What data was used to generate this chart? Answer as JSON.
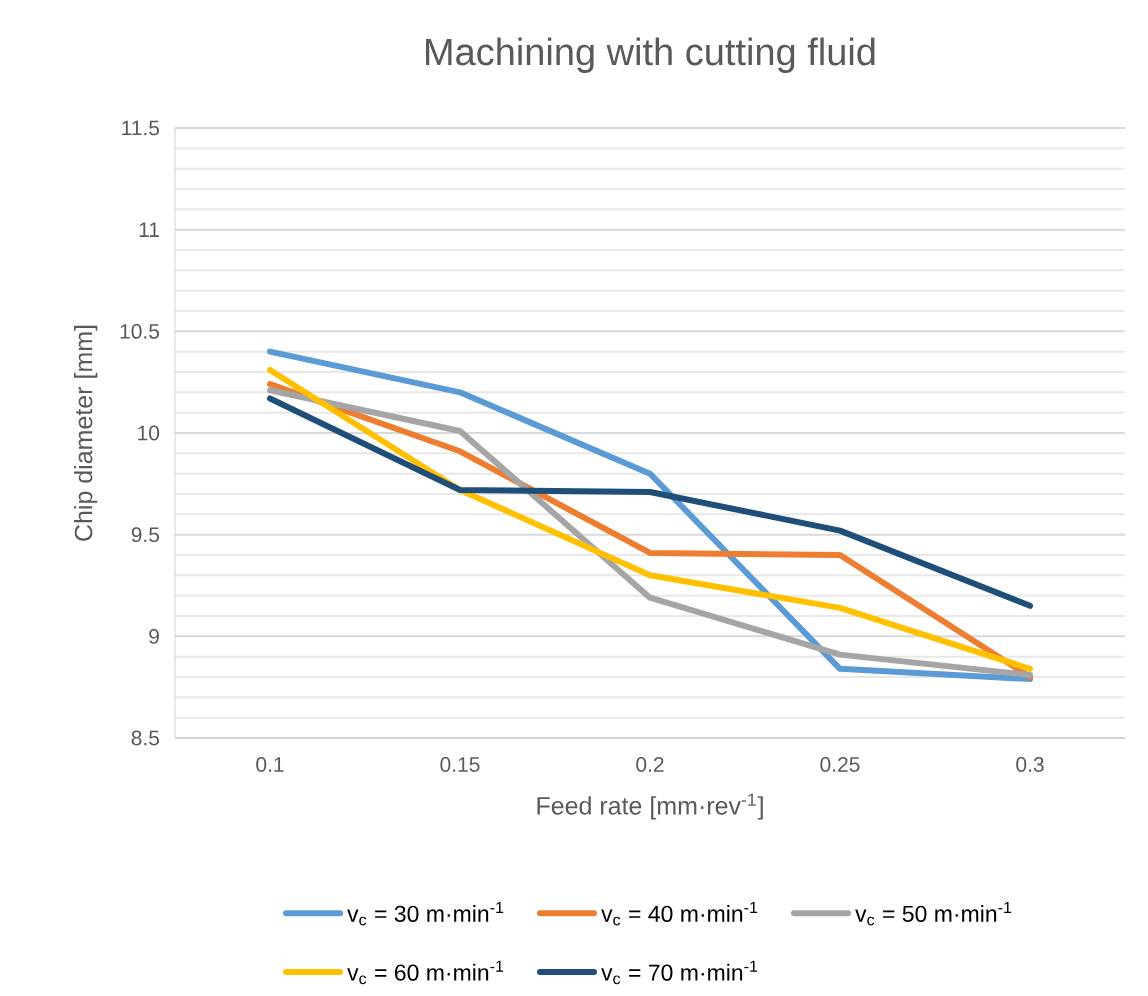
{
  "chart_data": {
    "type": "line",
    "title": "Machining with cutting fluid",
    "xlabel": "Feed rate [mm·rev$^{-1}$]",
    "ylabel": "Chip diameter [mm]",
    "categories": [
      "0.1",
      "0.15",
      "0.2",
      "0.25",
      "0.3"
    ],
    "series": [
      {
        "name": "v$_{c}$ = 30 m·min$^{-1}$",
        "color": "#5b9bd5",
        "values": [
          10.4,
          10.2,
          9.8,
          8.84,
          8.79
        ]
      },
      {
        "name": "v$_{c}$ = 40 m·min$^{-1}$",
        "color": "#ed7d31",
        "values": [
          10.24,
          9.91,
          9.41,
          9.4,
          8.8
        ]
      },
      {
        "name": "v$_{c}$ = 50 m·min$^{-1}$",
        "color": "#a5a5a5",
        "values": [
          10.21,
          10.01,
          9.19,
          8.91,
          8.81
        ]
      },
      {
        "name": "v$_{c}$ = 60 m·min$^{-1}$",
        "color": "#ffc000",
        "values": [
          10.31,
          9.72,
          9.3,
          9.14,
          8.84
        ]
      },
      {
        "name": "v$_{c}$ = 70 m·min$^{-1}$",
        "color": "#1f4e79",
        "values": [
          10.17,
          9.72,
          9.71,
          9.52,
          9.15
        ]
      }
    ],
    "ylim": [
      8.5,
      11.5
    ],
    "yticks": [
      8.5,
      9,
      9.5,
      10,
      10.5,
      11,
      11.5
    ],
    "grid": "y",
    "legend": "bottom"
  }
}
